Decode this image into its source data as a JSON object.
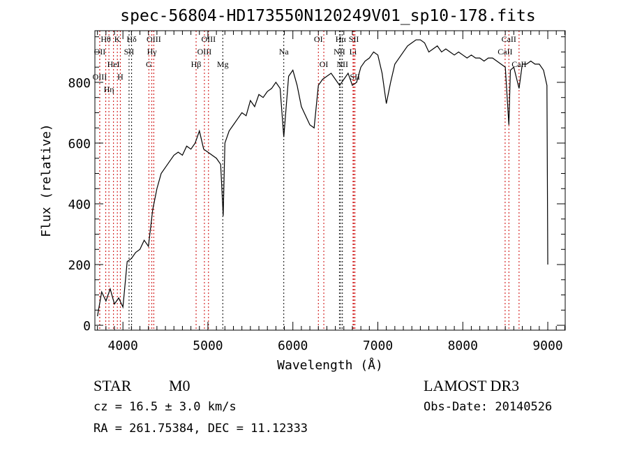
{
  "chart_data": {
    "type": "line",
    "title": "spec-56804-HD173550N120249V01_sp10-178.fits",
    "xlabel": "Wavelength (Å)",
    "ylabel": "Flux (relative)",
    "xlim": [
      3670,
      9205
    ],
    "ylim": [
      -16,
      970
    ],
    "xticks": [
      4000,
      5000,
      6000,
      7000,
      8000,
      9000
    ],
    "yticks": [
      0,
      200,
      400,
      600,
      800
    ],
    "grid": false,
    "series": [
      {
        "name": "spectrum",
        "color": "#000000",
        "x": [
          3700,
          3750,
          3800,
          3850,
          3900,
          3950,
          4000,
          4050,
          4100,
          4150,
          4200,
          4250,
          4300,
          4350,
          4400,
          4450,
          4500,
          4550,
          4600,
          4650,
          4700,
          4750,
          4800,
          4850,
          4900,
          4950,
          5000,
          5050,
          5100,
          5150,
          5180,
          5200,
          5250,
          5300,
          5350,
          5400,
          5450,
          5500,
          5550,
          5600,
          5650,
          5700,
          5750,
          5800,
          5850,
          5893,
          5950,
          6000,
          6050,
          6100,
          6150,
          6200,
          6250,
          6300,
          6350,
          6400,
          6450,
          6500,
          6550,
          6600,
          6650,
          6700,
          6750,
          6800,
          6850,
          6900,
          6950,
          7000,
          7050,
          7100,
          7150,
          7200,
          7250,
          7300,
          7350,
          7400,
          7450,
          7500,
          7550,
          7600,
          7650,
          7700,
          7750,
          7800,
          7850,
          7900,
          7950,
          8000,
          8050,
          8100,
          8150,
          8200,
          8250,
          8300,
          8350,
          8400,
          8450,
          8500,
          8542,
          8560,
          8600,
          8662,
          8700,
          8750,
          8800,
          8850,
          8900,
          8950,
          8990,
          9000
        ],
        "y": [
          30,
          110,
          80,
          120,
          70,
          90,
          60,
          210,
          220,
          240,
          250,
          280,
          260,
          380,
          450,
          500,
          520,
          540,
          560,
          570,
          560,
          590,
          580,
          600,
          640,
          580,
          570,
          560,
          550,
          530,
          360,
          600,
          640,
          660,
          680,
          700,
          690,
          740,
          720,
          760,
          750,
          770,
          780,
          800,
          780,
          620,
          820,
          840,
          790,
          720,
          690,
          660,
          650,
          790,
          810,
          820,
          830,
          810,
          790,
          810,
          830,
          790,
          800,
          850,
          870,
          880,
          900,
          890,
          830,
          730,
          800,
          860,
          880,
          900,
          920,
          930,
          940,
          940,
          930,
          900,
          910,
          920,
          900,
          910,
          900,
          890,
          900,
          890,
          880,
          890,
          880,
          880,
          870,
          880,
          880,
          870,
          860,
          850,
          660,
          840,
          850,
          780,
          860,
          860,
          870,
          860,
          860,
          840,
          790,
          200
        ]
      }
    ],
    "line_markers": [
      {
        "wave": 3727,
        "color": "#cc0000",
        "label": "OII",
        "row": 1
      },
      {
        "wave": 3798,
        "color": "#cc0000",
        "label": "Hθ",
        "row": 0
      },
      {
        "wave": 3727,
        "color": "#cc0000",
        "label": "OIII",
        "row": 2
      },
      {
        "wave": 3835,
        "color": "#cc0000",
        "label": "Hη",
        "row": 2
      },
      {
        "wave": 3889,
        "color": "#cc0000",
        "label": "HeI",
        "row": 1
      },
      {
        "wave": 3934,
        "color": "#cc0000",
        "label": "K",
        "row": 0
      },
      {
        "wave": 3969,
        "color": "#cc0000",
        "label": "H",
        "row": 2
      },
      {
        "wave": 4072,
        "color": "#000000",
        "label": "SII",
        "row": 1
      },
      {
        "wave": 4102,
        "color": "#000000",
        "label": "Hδ",
        "row": 0
      },
      {
        "wave": 4305,
        "color": "#cc0000",
        "label": "G",
        "row": 2
      },
      {
        "wave": 4340,
        "color": "#cc0000",
        "label": "Hγ",
        "row": 1
      },
      {
        "wave": 4363,
        "color": "#cc0000",
        "label": "OIII",
        "row": 0
      },
      {
        "wave": 4861,
        "color": "#cc0000",
        "label": "Hβ",
        "row": 2
      },
      {
        "wave": 4959,
        "color": "#cc0000",
        "label": "OIII",
        "row": 1
      },
      {
        "wave": 5007,
        "color": "#cc0000",
        "label": "OIII",
        "row": 0
      },
      {
        "wave": 5175,
        "color": "#000000",
        "label": "Mg",
        "row": 2
      },
      {
        "wave": 5893,
        "color": "#000000",
        "label": "Na",
        "row": 1
      },
      {
        "wave": 6300,
        "color": "#cc0000",
        "label": "OI",
        "row": 0
      },
      {
        "wave": 6364,
        "color": "#cc0000",
        "label": "OI",
        "row": 2
      },
      {
        "wave": 6548,
        "color": "#000000",
        "label": "NII",
        "row": 1
      },
      {
        "wave": 6563,
        "color": "#000000",
        "label": "Hα",
        "row": 0
      },
      {
        "wave": 6583,
        "color": "#000000",
        "label": "NII",
        "row": 2
      },
      {
        "wave": 6708,
        "color": "#cc0000",
        "label": "Li",
        "row": 1
      },
      {
        "wave": 6717,
        "color": "#cc0000",
        "label": "SII",
        "row": 0
      },
      {
        "wave": 6731,
        "color": "#cc0000",
        "label": "SII",
        "row": 2
      },
      {
        "wave": 8498,
        "color": "#cc0000",
        "label": "CaII",
        "row": 1
      },
      {
        "wave": 8542,
        "color": "#cc0000",
        "label": "CaII",
        "row": 0
      },
      {
        "wave": 8662,
        "color": "#cc0000",
        "label": "CaII",
        "row": 2
      }
    ]
  },
  "info": {
    "class": "STAR",
    "subclass": "M0",
    "survey": "LAMOST DR3",
    "cz": "cz = 16.5 ± 3.0 km/s",
    "obs_date": "Obs-Date: 20140526",
    "radec": "RA = 261.75384, DEC =  11.12333"
  }
}
